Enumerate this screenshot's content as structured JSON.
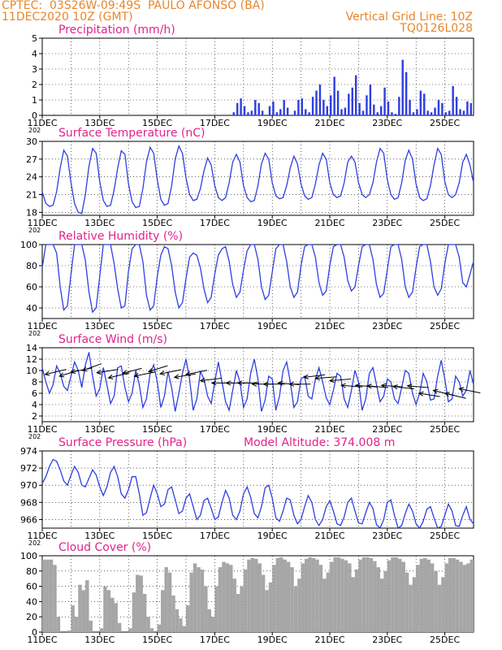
{
  "header": {
    "line1": "CPTEC:  03S26W-09:49S  PAULO AFONSO (BA)",
    "line2": "11DEC2020 10Z (GMT)",
    "grid_note": "Vertical Grid Line: 10Z",
    "code": "TQ0126L028"
  },
  "colors": {
    "header": "#e8862a",
    "panel_title": "#e0238c",
    "series": "#2f3fe0",
    "cloud": "#a6a6a6",
    "vector": "#000000"
  },
  "x_labels": [
    "11DEC",
    "13DEC",
    "15DEC",
    "17DEC",
    "19DEC",
    "21DEC",
    "23DEC",
    "25DEC"
  ],
  "x_cut_label": "202",
  "chart_data": [
    {
      "type": "bar",
      "title": "Precipitation (mm/h)",
      "ylim": [
        0,
        5
      ],
      "yticks": [
        0,
        1,
        2,
        3,
        4,
        5
      ],
      "x_start_day": 11,
      "x_step_days": 0.125,
      "values": [
        0,
        0,
        0,
        0.05,
        0,
        0,
        0,
        0,
        0,
        0,
        0,
        0,
        0,
        0,
        0,
        0,
        0,
        0,
        0,
        0,
        0,
        0,
        0,
        0,
        0,
        0,
        0,
        0,
        0,
        0,
        0,
        0,
        0,
        0,
        0,
        0,
        0,
        0,
        0,
        0,
        0,
        0,
        0,
        0,
        0,
        0,
        0,
        0,
        0,
        0,
        0,
        0,
        0,
        0.2,
        0.8,
        1.1,
        0.6,
        0.2,
        0.3,
        1.0,
        0.8,
        0.3,
        0,
        0.6,
        0.9,
        0.2,
        0.4,
        1.0,
        0.5,
        0,
        0.3,
        1.0,
        1.1,
        0.4,
        0.2,
        1.2,
        1.6,
        2.0,
        1.0,
        0.6,
        1.3,
        2.5,
        1.6,
        0.4,
        0.5,
        1.4,
        1.8,
        2.6,
        0.8,
        0.3,
        1.3,
        2.0,
        0.7,
        0.2,
        0.6,
        1.8,
        0.9,
        0.2,
        0.1,
        1.2,
        3.6,
        2.8,
        1.0,
        0.2,
        0.4,
        1.6,
        1.4,
        0.3,
        0.2,
        0.5,
        1.0,
        0.8,
        0.2,
        0.3,
        1.9,
        1.2,
        0.4,
        0.3,
        0.9,
        0.8,
        0.5
      ],
      "wind_vectors": []
    },
    {
      "type": "line",
      "title": "Surface Temperature (nC)",
      "ylim": [
        17.5,
        30
      ],
      "yticks": [
        18,
        21,
        24,
        27,
        30
      ],
      "x_start_day": 11,
      "x_step_days": 0.125,
      "values": [
        21.5,
        19.5,
        19.0,
        19.2,
        21.5,
        25.5,
        28.5,
        27.5,
        23.0,
        19.5,
        18.0,
        17.8,
        21.0,
        25.8,
        28.8,
        28.0,
        23.2,
        20.0,
        19.0,
        19.2,
        21.8,
        25.5,
        28.4,
        27.8,
        22.8,
        19.8,
        18.8,
        19.0,
        22.0,
        26.5,
        29.0,
        28.0,
        23.5,
        20.2,
        19.2,
        19.5,
        22.5,
        27.0,
        29.2,
        28.0,
        23.8,
        21.0,
        20.0,
        20.2,
        22.0,
        25.0,
        27.2,
        26.0,
        22.5,
        20.5,
        20.0,
        20.5,
        23.0,
        26.5,
        27.8,
        26.5,
        22.5,
        20.5,
        19.8,
        20.0,
        22.5,
        26.2,
        28.0,
        27.0,
        23.0,
        20.8,
        20.3,
        20.5,
        22.5,
        25.5,
        27.5,
        26.2,
        22.8,
        20.8,
        20.2,
        20.5,
        22.8,
        26.0,
        28.0,
        27.0,
        23.0,
        21.0,
        20.5,
        20.8,
        23.0,
        26.5,
        27.5,
        26.5,
        23.0,
        21.0,
        20.5,
        21.0,
        23.0,
        26.5,
        28.8,
        28.0,
        23.5,
        21.0,
        20.2,
        20.5,
        23.0,
        26.8,
        28.5,
        27.0,
        22.8,
        20.5,
        20.0,
        20.3,
        22.5,
        26.0,
        28.8,
        27.8,
        23.2,
        21.0,
        20.5,
        21.0,
        23.0,
        26.5,
        27.8,
        26.0,
        23.0
      ],
      "wind_vectors": []
    },
    {
      "type": "line",
      "title": "Relative Humidity (%)",
      "ylim": [
        30,
        100
      ],
      "yticks": [
        40,
        60,
        80,
        100
      ],
      "x_start_day": 11,
      "x_step_days": 0.125,
      "values": [
        78,
        100,
        100,
        100,
        92,
        60,
        38,
        42,
        72,
        100,
        100,
        100,
        85,
        55,
        36,
        40,
        70,
        100,
        100,
        100,
        82,
        58,
        40,
        42,
        75,
        96,
        100,
        100,
        84,
        52,
        38,
        42,
        70,
        90,
        98,
        96,
        80,
        55,
        40,
        45,
        68,
        88,
        92,
        90,
        78,
        58,
        45,
        50,
        72,
        90,
        96,
        98,
        84,
        62,
        50,
        55,
        76,
        94,
        100,
        100,
        86,
        60,
        48,
        52,
        74,
        96,
        100,
        100,
        84,
        60,
        50,
        55,
        80,
        98,
        100,
        100,
        88,
        64,
        52,
        56,
        80,
        98,
        100,
        100,
        88,
        66,
        56,
        60,
        80,
        98,
        100,
        100,
        86,
        62,
        50,
        54,
        76,
        98,
        100,
        100,
        86,
        60,
        50,
        55,
        78,
        98,
        100,
        100,
        84,
        60,
        52,
        58,
        82,
        100,
        100,
        100,
        88,
        64,
        60,
        72,
        84
      ],
      "wind_vectors": []
    },
    {
      "type": "line",
      "title": "Surface Wind (m/s)",
      "ylim": [
        1,
        14
      ],
      "yticks": [
        2,
        4,
        6,
        8,
        10,
        12,
        14
      ],
      "x_start_day": 11,
      "x_step_days": 0.125,
      "values": [
        10.5,
        8.0,
        6.0,
        7.5,
        10.8,
        9.5,
        7.2,
        6.5,
        9.0,
        11.5,
        10.0,
        7.0,
        11.0,
        13.2,
        9.0,
        5.5,
        6.8,
        10.5,
        7.5,
        4.2,
        5.5,
        10.5,
        10.8,
        7.0,
        4.5,
        6.0,
        10.0,
        7.5,
        3.5,
        5.0,
        9.5,
        11.0,
        8.0,
        3.5,
        5.5,
        9.8,
        7.0,
        2.8,
        6.0,
        9.5,
        12.0,
        8.5,
        3.0,
        5.0,
        9.8,
        8.5,
        5.5,
        4.2,
        8.0,
        11.5,
        8.0,
        4.5,
        3.0,
        6.5,
        10.0,
        8.0,
        3.5,
        5.0,
        9.5,
        12.0,
        8.5,
        2.8,
        4.8,
        9.0,
        8.5,
        3.0,
        5.5,
        10.0,
        11.5,
        8.0,
        3.5,
        4.5,
        8.5,
        9.0,
        5.5,
        5.0,
        8.5,
        10.5,
        8.0,
        5.2,
        4.0,
        6.5,
        9.5,
        9.0,
        5.0,
        3.5,
        6.5,
        10.0,
        8.0,
        3.0,
        5.0,
        9.5,
        10.5,
        7.5,
        4.5,
        5.5,
        8.5,
        8.0,
        5.0,
        4.2,
        7.0,
        10.0,
        9.5,
        6.0,
        4.0,
        6.0,
        9.5,
        8.0,
        4.8,
        5.0,
        9.0,
        11.8,
        8.5,
        4.5,
        5.0,
        9.0,
        8.0,
        5.5,
        6.5,
        10.0,
        7.5
      ],
      "wind_vectors": [
        {
          "day": 11.1,
          "base": 9.3,
          "dx": 1.0,
          "dy": -0.6
        },
        {
          "day": 11.6,
          "base": 9.0,
          "dx": 0.9,
          "dy": -0.7
        },
        {
          "day": 12.0,
          "base": 9.7,
          "dx": 1.0,
          "dy": -0.5
        },
        {
          "day": 12.4,
          "base": 10.0,
          "dx": 0.9,
          "dy": -0.8
        },
        {
          "day": 12.9,
          "base": 9.6,
          "dx": 1.0,
          "dy": -0.4
        },
        {
          "day": 13.3,
          "base": 8.7,
          "dx": 1.0,
          "dy": -0.6
        },
        {
          "day": 13.8,
          "base": 9.5,
          "dx": 0.9,
          "dy": -0.6
        },
        {
          "day": 14.2,
          "base": 9.0,
          "dx": 1.0,
          "dy": -0.5
        },
        {
          "day": 14.7,
          "base": 9.8,
          "dx": 0.9,
          "dy": -0.7
        },
        {
          "day": 15.1,
          "base": 9.4,
          "dx": 1.0,
          "dy": -0.5
        },
        {
          "day": 15.6,
          "base": 8.8,
          "dx": 1.0,
          "dy": -0.4
        },
        {
          "day": 16.0,
          "base": 9.3,
          "dx": 1.0,
          "dy": -0.5
        },
        {
          "day": 16.5,
          "base": 8.2,
          "dx": 1.0,
          "dy": -0.3
        },
        {
          "day": 16.9,
          "base": 7.8,
          "dx": 1.0,
          "dy": 0.0
        },
        {
          "day": 17.4,
          "base": 7.8,
          "dx": 1.0,
          "dy": 0.0
        },
        {
          "day": 17.8,
          "base": 7.8,
          "dx": 1.0,
          "dy": 0.0
        },
        {
          "day": 18.3,
          "base": 7.6,
          "dx": 1.0,
          "dy": 0.0
        },
        {
          "day": 18.7,
          "base": 7.6,
          "dx": 1.0,
          "dy": 0.0
        },
        {
          "day": 19.2,
          "base": 7.8,
          "dx": 1.0,
          "dy": 0.2
        },
        {
          "day": 19.6,
          "base": 7.6,
          "dx": 1.0,
          "dy": 0.0
        },
        {
          "day": 20.1,
          "base": 8.8,
          "dx": 1.0,
          "dy": -0.3
        },
        {
          "day": 20.5,
          "base": 8.6,
          "dx": 1.0,
          "dy": -0.2
        },
        {
          "day": 21.0,
          "base": 8.2,
          "dx": 1.0,
          "dy": -0.2
        },
        {
          "day": 21.4,
          "base": 7.4,
          "dx": 1.0,
          "dy": 0.2
        },
        {
          "day": 21.9,
          "base": 7.4,
          "dx": 1.0,
          "dy": 0.2
        },
        {
          "day": 22.3,
          "base": 7.3,
          "dx": 1.0,
          "dy": 0.2
        },
        {
          "day": 22.8,
          "base": 7.4,
          "dx": 1.0,
          "dy": 0.2
        },
        {
          "day": 23.2,
          "base": 7.2,
          "dx": 1.0,
          "dy": 0.3
        },
        {
          "day": 23.7,
          "base": 7.3,
          "dx": 1.0,
          "dy": 0.2
        },
        {
          "day": 24.1,
          "base": 6.0,
          "dx": 1.0,
          "dy": 0.4
        },
        {
          "day": 24.6,
          "base": 6.5,
          "dx": 1.0,
          "dy": 0.6
        },
        {
          "day": 25.0,
          "base": 6.0,
          "dx": 1.0,
          "dy": 0.6
        },
        {
          "day": 25.5,
          "base": 6.8,
          "dx": 1.0,
          "dy": 0.5
        }
      ]
    },
    {
      "type": "line",
      "title": "Surface Pressure (hPa)",
      "extra_label": "Model Altitude: 374.008 m",
      "ylim": [
        965,
        974
      ],
      "yticks": [
        966,
        968,
        970,
        972,
        974
      ],
      "x_start_day": 11,
      "x_step_days": 0.125,
      "values": [
        970.2,
        971.0,
        972.2,
        973.0,
        972.8,
        971.8,
        970.5,
        970.0,
        971.2,
        972.2,
        971.5,
        970.0,
        969.8,
        970.8,
        971.8,
        971.2,
        969.8,
        968.8,
        969.8,
        971.5,
        972.2,
        971.0,
        969.0,
        968.5,
        969.5,
        971.0,
        971.0,
        969.0,
        966.5,
        966.8,
        968.5,
        970.0,
        969.0,
        967.5,
        967.8,
        969.5,
        969.8,
        968.3,
        966.7,
        967.0,
        968.5,
        969.0,
        967.5,
        966.0,
        966.5,
        968.2,
        968.5,
        967.3,
        966.0,
        966.3,
        968.0,
        969.4,
        968.5,
        966.5,
        966.0,
        967.0,
        969.0,
        969.8,
        968.6,
        966.7,
        966.2,
        967.5,
        969.7,
        970.0,
        968.5,
        966.2,
        965.8,
        967.0,
        968.5,
        968.3,
        966.5,
        965.5,
        966.0,
        967.5,
        968.8,
        968.0,
        966.0,
        965.3,
        966.0,
        967.5,
        968.2,
        967.0,
        965.5,
        965.3,
        966.3,
        968.0,
        968.5,
        967.0,
        965.6,
        965.5,
        966.8,
        968.0,
        967.3,
        965.4,
        965.0,
        966.0,
        968.0,
        968.3,
        966.5,
        965.0,
        965.3,
        966.7,
        967.8,
        967.0,
        965.5,
        965.0,
        965.8,
        967.2,
        967.5,
        966.2,
        965.0,
        965.2,
        966.5,
        967.8,
        967.0,
        965.3,
        965.2,
        966.5,
        967.5,
        966.0,
        965.5
      ],
      "wind_vectors": []
    },
    {
      "type": "bar",
      "title": "Cloud Cover (%)",
      "ylim": [
        0,
        100
      ],
      "yticks": [
        0,
        20,
        40,
        60,
        80,
        100
      ],
      "x_start_day": 11,
      "x_step_days": 0.125,
      "values": [
        95,
        95,
        95,
        88,
        20,
        0,
        0,
        2,
        35,
        20,
        62,
        55,
        68,
        15,
        0,
        0,
        5,
        60,
        55,
        45,
        38,
        12,
        0,
        0,
        5,
        52,
        75,
        74,
        50,
        20,
        5,
        0,
        10,
        55,
        85,
        78,
        48,
        30,
        18,
        8,
        35,
        78,
        90,
        85,
        82,
        60,
        30,
        20,
        60,
        85,
        92,
        90,
        88,
        70,
        50,
        60,
        82,
        95,
        97,
        96,
        90,
        75,
        55,
        65,
        88,
        97,
        98,
        95,
        92,
        85,
        60,
        70,
        90,
        96,
        98,
        97,
        95,
        88,
        70,
        78,
        92,
        98,
        98,
        96,
        94,
        90,
        72,
        82,
        95,
        98,
        98,
        97,
        93,
        85,
        70,
        80,
        94,
        98,
        98,
        96,
        92,
        78,
        62,
        72,
        88,
        96,
        97,
        95,
        90,
        80,
        62,
        72,
        90,
        97,
        97,
        95,
        92,
        88,
        90,
        95,
        95
      ],
      "wind_vectors": []
    }
  ]
}
